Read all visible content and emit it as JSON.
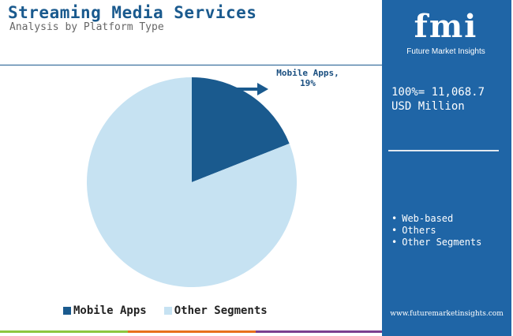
{
  "header": {
    "title": "Streaming Media Services",
    "subtitle": "Analysis by Platform Type"
  },
  "chart_data": {
    "type": "pie",
    "title": "Streaming Media Services",
    "subtitle": "Analysis by Platform Type",
    "slices": [
      {
        "label": "Mobile Apps",
        "value": 19,
        "color": "#1a5a8e"
      },
      {
        "label": "Other Segments",
        "value": 81,
        "color": "#c6e2f2"
      }
    ],
    "data_labels": [
      {
        "text": "Mobile Apps,",
        "value_text": "19%"
      }
    ],
    "legend": {
      "placement": "bottom",
      "items": [
        "Mobile Apps",
        "Other Segments"
      ]
    }
  },
  "side_panel": {
    "logo_mark": "fmi",
    "logo_text": "Future Market Insights",
    "total_line1": "100%= 11,068.7",
    "total_line2": "USD Million",
    "other_segments": [
      "Web-based",
      "Others",
      "Other Segments"
    ],
    "url": "www.futuremarketinsights.com",
    "background": "#1f65a6"
  },
  "colors": {
    "accent": "#1a5a8e",
    "light_slice": "#c6e2f2",
    "footer_green": "#8dc63f",
    "footer_orange": "#e8711b",
    "footer_purple": "#7b3f8f"
  }
}
